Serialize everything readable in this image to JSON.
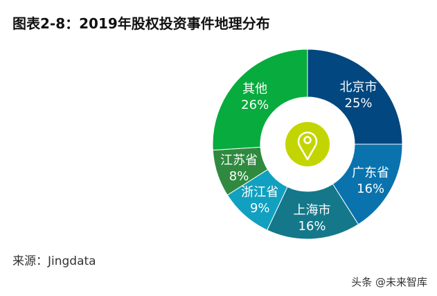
{
  "chart_data": {
    "type": "pie",
    "variant": "donut",
    "title": "图表2-8：2019年股权投资事件地理分布",
    "categories": [
      "北京市",
      "广东省",
      "上海市",
      "浙江省",
      "江苏省",
      "其他"
    ],
    "values": [
      25,
      16,
      16,
      9,
      8,
      26
    ],
    "value_labels": [
      "25%",
      "16%",
      "16%",
      "9%",
      "8%",
      "26%"
    ],
    "colors": [
      "#02477f",
      "#0a73ae",
      "#14788a",
      "#11a0c0",
      "#2f8a3f",
      "#08ab3d"
    ],
    "center_icon": "location-pin-icon",
    "center_icon_color": "#c3d500",
    "legend": "none"
  },
  "source": "来源：Jingdata",
  "watermark": "头条 @未来智库"
}
